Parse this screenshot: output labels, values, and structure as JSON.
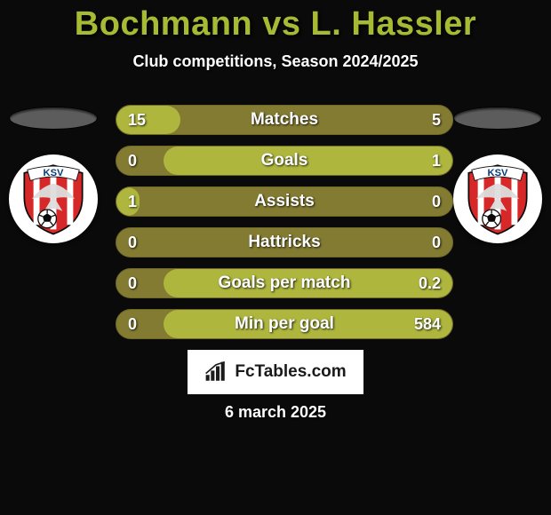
{
  "title_player1": "Bochmann",
  "title_vs": " vs ",
  "title_player2": "L. Hassler",
  "title_color": "#a7ba33",
  "subtitle": "Club competitions, Season 2024/2025",
  "text_color": "#ffffff",
  "background_color": "#0a0a0a",
  "bar_track_color": "#837b31",
  "bar_fill_color": "#aeb63e",
  "side_shadow_color": "#5c5c5c",
  "bars": [
    {
      "label": "Matches",
      "left_val": "15",
      "right_val": "5",
      "left_pct": 19,
      "right_pct": 0
    },
    {
      "label": "Goals",
      "left_val": "0",
      "right_val": "1",
      "left_pct": 0,
      "right_pct": 86
    },
    {
      "label": "Assists",
      "left_val": "1",
      "right_val": "0",
      "left_pct": 7,
      "right_pct": 0
    },
    {
      "label": "Hattricks",
      "left_val": "0",
      "right_val": "0",
      "left_pct": 0,
      "right_pct": 0
    },
    {
      "label": "Goals per match",
      "left_val": "0",
      "right_val": "0.2",
      "left_pct": 0,
      "right_pct": 86
    },
    {
      "label": "Min per goal",
      "left_val": "0",
      "right_val": "584",
      "left_pct": 0,
      "right_pct": 86
    }
  ],
  "badge": {
    "shield_fill": "#d62828",
    "shield_stroke": "#0a0a0a",
    "stripe_color": "#ffffff",
    "banner_text": "KSV",
    "banner_fill": "#ffffff",
    "banner_text_color": "#083a7a",
    "ball_color": "#0a0a0a",
    "eagle_color": "#dedede"
  },
  "brand": {
    "text": "FcTables.com",
    "box_bg": "#ffffff",
    "text_color": "#1a1a1a",
    "icon_color": "#1a1a1a"
  },
  "date_text": "6 march 2025"
}
